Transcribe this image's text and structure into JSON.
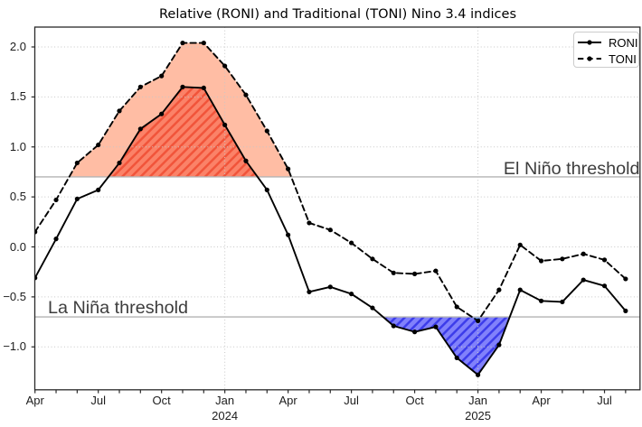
{
  "title": "Relative (RONI) and Traditional (TONI) Nino 3.4 indices",
  "legend": {
    "entries": [
      {
        "label": "RONI",
        "line_style": "solid",
        "marker": "dot"
      },
      {
        "label": "TONI",
        "line_style": "dashed",
        "marker": "dot"
      }
    ]
  },
  "thresholds": {
    "elnino": {
      "value": 0.7,
      "label": "El Niño threshold"
    },
    "lanina": {
      "value": -0.7,
      "label": "La Niña threshold"
    }
  },
  "axes": {
    "y_ticks": [
      {
        "value": 2.0,
        "label": "2.0"
      },
      {
        "value": 1.5,
        "label": "1.5"
      },
      {
        "value": 1.0,
        "label": "1.0"
      },
      {
        "value": 0.5,
        "label": "0.5"
      },
      {
        "value": 0.0,
        "label": "0.0"
      },
      {
        "value": -0.5,
        "label": "−0.5"
      },
      {
        "value": -1.0,
        "label": "−1.0"
      }
    ],
    "x_ticks": [
      {
        "month_index": 0,
        "label": "Apr"
      },
      {
        "month_index": 3,
        "label": "Jul"
      },
      {
        "month_index": 6,
        "label": "Oct"
      },
      {
        "month_index": 9,
        "label": "Jan",
        "year": "2024"
      },
      {
        "month_index": 12,
        "label": "Apr"
      },
      {
        "month_index": 15,
        "label": "Jul"
      },
      {
        "month_index": 18,
        "label": "Oct"
      },
      {
        "month_index": 21,
        "label": "Jan",
        "year": "2025"
      },
      {
        "month_index": 24,
        "label": "Apr"
      },
      {
        "month_index": 27,
        "label": "Jul"
      }
    ],
    "ylim": [
      -1.43,
      2.2
    ],
    "grid": "dotted, horizontal at every 0.5; vertical at January ticks"
  },
  "chart_data": {
    "type": "line",
    "title": "Relative (RONI) and Traditional (TONI) Nino 3.4 indices",
    "x": [
      "2023-04",
      "2023-05",
      "2023-06",
      "2023-07",
      "2023-08",
      "2023-09",
      "2023-10",
      "2023-11",
      "2023-12",
      "2024-01",
      "2024-02",
      "2024-03",
      "2024-04",
      "2024-05",
      "2024-06",
      "2024-07",
      "2024-08",
      "2024-09",
      "2024-10",
      "2024-11",
      "2024-12",
      "2025-01",
      "2025-02",
      "2025-03",
      "2025-04",
      "2025-05",
      "2025-06",
      "2025-07",
      "2025-08"
    ],
    "series": [
      {
        "name": "RONI",
        "line": "solid",
        "color": "#000000",
        "values": [
          -0.31,
          0.08,
          0.48,
          0.57,
          0.84,
          1.18,
          1.33,
          1.6,
          1.59,
          1.22,
          0.86,
          0.57,
          0.12,
          -0.45,
          -0.4,
          -0.47,
          -0.61,
          -0.79,
          -0.85,
          -0.8,
          -1.11,
          -1.28,
          -0.98,
          -0.43,
          -0.54,
          -0.55,
          -0.33,
          -0.39,
          -0.64
        ]
      },
      {
        "name": "TONI",
        "line": "dashed",
        "color": "#000000",
        "values": [
          0.15,
          0.47,
          0.84,
          1.02,
          1.36,
          1.6,
          1.71,
          2.04,
          2.04,
          1.81,
          1.52,
          1.16,
          0.78,
          0.24,
          0.17,
          0.04,
          -0.12,
          -0.26,
          -0.27,
          -0.24,
          -0.6,
          -0.74,
          -0.43,
          0.02,
          -0.14,
          -0.12,
          -0.07,
          -0.13,
          -0.32
        ]
      }
    ],
    "fills": [
      {
        "series": "TONI",
        "threshold": 0.7,
        "side": "above",
        "color": "#ffbda4"
      },
      {
        "series": "RONI",
        "threshold": 0.7,
        "side": "above",
        "color": "#fb8268",
        "hatch": "#f1543a"
      },
      {
        "series": "RONI",
        "threshold": -0.7,
        "side": "below",
        "color": "#8181fb",
        "hatch": "#3c3cea"
      },
      {
        "series": "TONI",
        "threshold": -0.7,
        "side": "below",
        "color": "#6495ed"
      }
    ],
    "colors": {
      "grid": "#c7c7c7",
      "threshold_line": "#b4b4b4",
      "spine": "#2a2a2a"
    },
    "xlabel": "",
    "ylabel": ""
  }
}
